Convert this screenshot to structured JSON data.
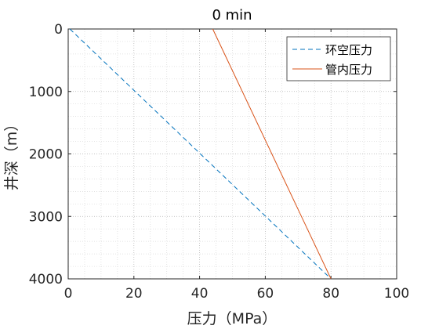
{
  "chart_data": {
    "type": "line",
    "title": "0 min",
    "xlabel": "压力（MPa）",
    "ylabel": "井深（m）",
    "xlim": [
      0,
      100
    ],
    "ylim": [
      0,
      4000
    ],
    "y_reversed": true,
    "x_ticks": [
      0,
      20,
      40,
      60,
      80,
      100
    ],
    "y_ticks": [
      0,
      1000,
      2000,
      3000,
      4000
    ],
    "grid": true,
    "grid_style": "dotted",
    "legend_position": "top-right",
    "series": [
      {
        "name": "环空压力",
        "color": "#0072BD",
        "dash": "dashed",
        "x": [
          0.5,
          80
        ],
        "y": [
          0,
          4000
        ]
      },
      {
        "name": "管内压力",
        "color": "#D95319",
        "dash": "solid",
        "x": [
          44,
          80
        ],
        "y": [
          0,
          4000
        ]
      }
    ]
  }
}
